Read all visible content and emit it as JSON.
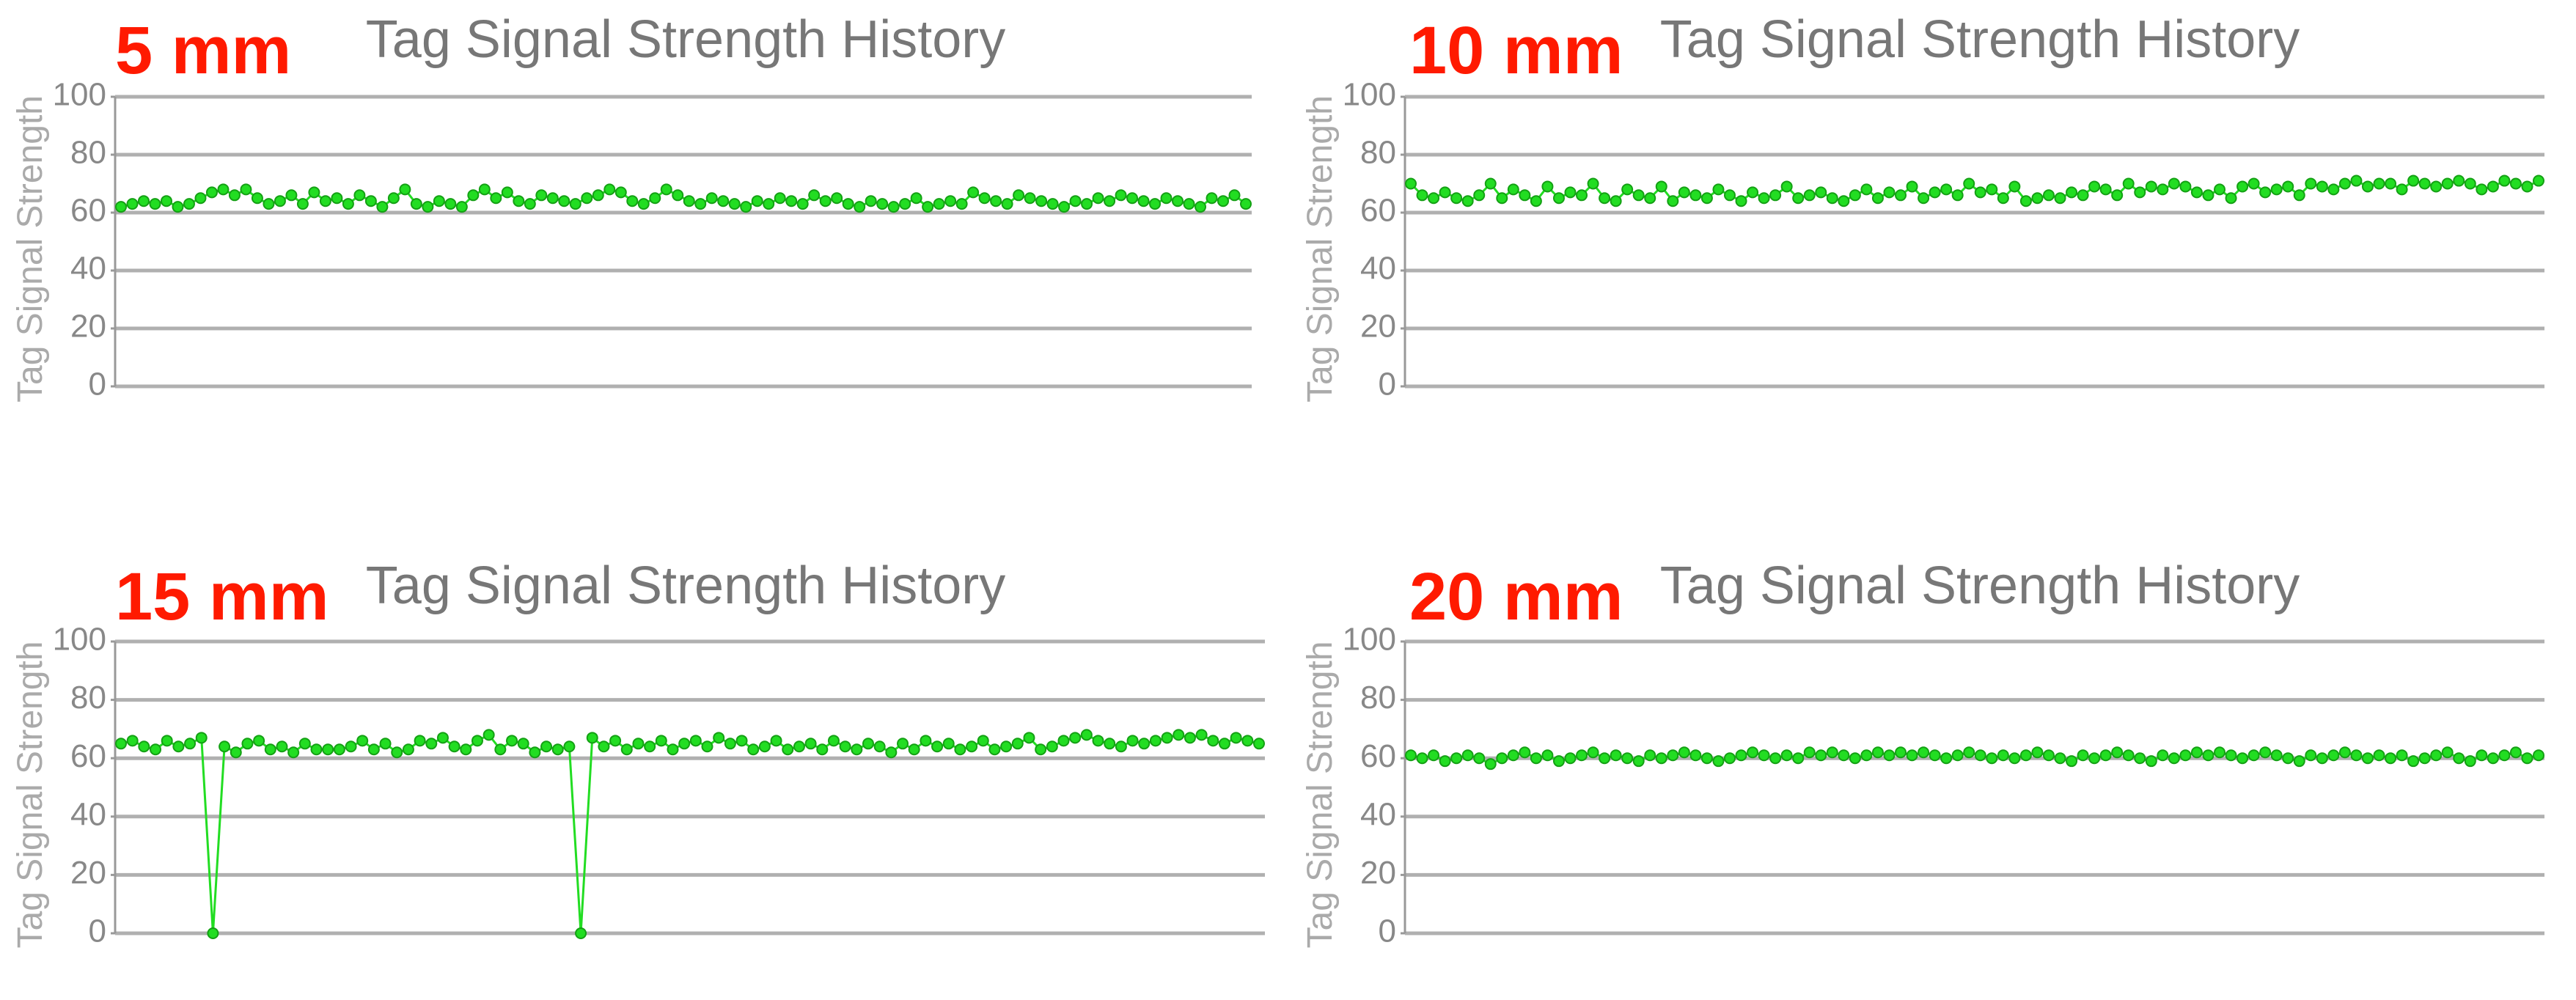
{
  "chart_data": [
    {
      "type": "line",
      "annotation": "5 mm",
      "title": "Tag Signal Strength History",
      "y_label": "Tag Signal Strength",
      "color": "#22dd22",
      "ylim": [
        0,
        100
      ],
      "yticks": [
        0,
        20,
        40,
        60,
        80,
        100
      ],
      "grid": true,
      "values": [
        62,
        63,
        64,
        63,
        64,
        62,
        63,
        65,
        67,
        68,
        66,
        68,
        65,
        63,
        64,
        66,
        63,
        67,
        64,
        65,
        63,
        66,
        64,
        62,
        65,
        68,
        63,
        62,
        64,
        63,
        62,
        66,
        68,
        65,
        67,
        64,
        63,
        66,
        65,
        64,
        63,
        65,
        66,
        68,
        67,
        64,
        63,
        65,
        68,
        66,
        64,
        63,
        65,
        64,
        63,
        62,
        64,
        63,
        65,
        64,
        63,
        66,
        64,
        65,
        63,
        62,
        64,
        63,
        62,
        63,
        65,
        62,
        63,
        64,
        63,
        67,
        65,
        64,
        63,
        66,
        65,
        64,
        63,
        62,
        64,
        63,
        65,
        64,
        66,
        65,
        64,
        63,
        65,
        64,
        63,
        62,
        65,
        64,
        66,
        63
      ]
    },
    {
      "type": "line",
      "annotation": "10 mm",
      "title": "Tag Signal Strength History",
      "y_label": "Tag Signal Strength",
      "color": "#22dd22",
      "ylim": [
        0,
        100
      ],
      "yticks": [
        0,
        20,
        40,
        60,
        80,
        100
      ],
      "grid": true,
      "values": [
        70,
        66,
        65,
        67,
        65,
        64,
        66,
        70,
        65,
        68,
        66,
        64,
        69,
        65,
        67,
        66,
        70,
        65,
        64,
        68,
        66,
        65,
        69,
        64,
        67,
        66,
        65,
        68,
        66,
        64,
        67,
        65,
        66,
        69,
        65,
        66,
        67,
        65,
        64,
        66,
        68,
        65,
        67,
        66,
        69,
        65,
        67,
        68,
        66,
        70,
        67,
        68,
        65,
        69,
        64,
        65,
        66,
        65,
        67,
        66,
        69,
        68,
        66,
        70,
        67,
        69,
        68,
        70,
        69,
        67,
        66,
        68,
        65,
        69,
        70,
        67,
        68,
        69,
        66,
        70,
        69,
        68,
        70,
        71,
        69,
        70,
        70,
        68,
        71,
        70,
        69,
        70,
        71,
        70,
        68,
        69,
        71,
        70,
        69,
        71
      ]
    },
    {
      "type": "line",
      "annotation": "15 mm",
      "title": "Tag Signal Strength History",
      "y_label": "Tag Signal Strength",
      "color": "#22dd22",
      "ylim": [
        0,
        100
      ],
      "yticks": [
        0,
        20,
        40,
        60,
        80,
        100
      ],
      "grid": true,
      "values": [
        65,
        66,
        64,
        63,
        66,
        64,
        65,
        67,
        0,
        64,
        62,
        65,
        66,
        63,
        64,
        62,
        65,
        63,
        63,
        63,
        64,
        66,
        63,
        65,
        62,
        63,
        66,
        65,
        67,
        64,
        63,
        66,
        68,
        63,
        66,
        65,
        62,
        64,
        63,
        64,
        0,
        67,
        64,
        66,
        63,
        65,
        64,
        66,
        63,
        65,
        66,
        64,
        67,
        65,
        66,
        63,
        64,
        66,
        63,
        64,
        65,
        63,
        66,
        64,
        63,
        65,
        64,
        62,
        65,
        63,
        66,
        64,
        65,
        63,
        64,
        66,
        63,
        64,
        65,
        67,
        63,
        64,
        66,
        67,
        68,
        66,
        65,
        64,
        66,
        65,
        66,
        67,
        68,
        67,
        68,
        66,
        65,
        67,
        66,
        65
      ]
    },
    {
      "type": "line",
      "annotation": "20 mm",
      "title": "Tag Signal Strength History",
      "y_label": "Tag Signal Strength",
      "color": "#22dd22",
      "ylim": [
        0,
        100
      ],
      "yticks": [
        0,
        20,
        40,
        60,
        80,
        100
      ],
      "grid": true,
      "values": [
        61,
        60,
        61,
        59,
        60,
        61,
        60,
        58,
        60,
        61,
        62,
        60,
        61,
        59,
        60,
        61,
        62,
        60,
        61,
        60,
        59,
        61,
        60,
        61,
        62,
        61,
        60,
        59,
        60,
        61,
        62,
        61,
        60,
        61,
        60,
        62,
        61,
        62,
        61,
        60,
        61,
        62,
        61,
        62,
        61,
        62,
        61,
        60,
        61,
        62,
        61,
        60,
        61,
        60,
        61,
        62,
        61,
        60,
        59,
        61,
        60,
        61,
        62,
        61,
        60,
        59,
        61,
        60,
        61,
        62,
        61,
        62,
        61,
        60,
        61,
        62,
        61,
        60,
        59,
        61,
        60,
        61,
        62,
        61,
        60,
        61,
        60,
        61,
        59,
        60,
        61,
        62,
        60,
        59,
        61,
        60,
        61,
        62,
        60,
        61
      ]
    }
  ]
}
